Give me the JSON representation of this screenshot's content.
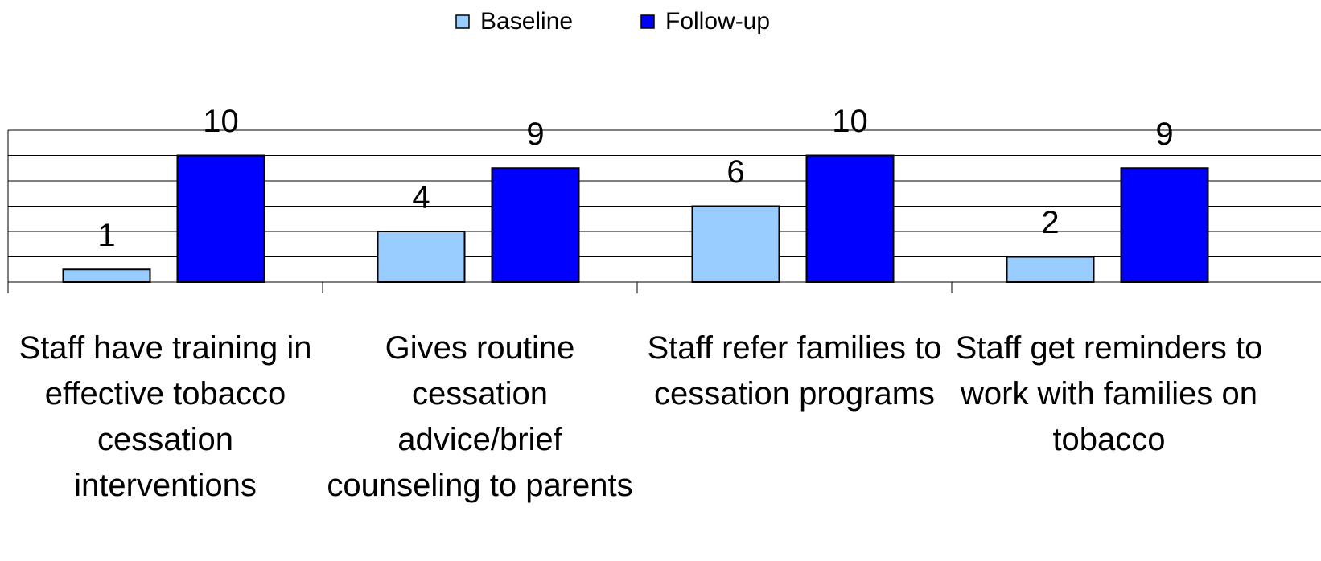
{
  "chart_data": {
    "type": "bar",
    "categories": [
      "Staff have training in effective tobacco cessation interventions",
      "Gives routine cessation advice/brief counseling to parents",
      "Staff refer families to cessation programs",
      "Staff get reminders to work with families on tobacco"
    ],
    "series": [
      {
        "name": "Baseline",
        "color": "#99ccff",
        "values": [
          1,
          4,
          6,
          2
        ]
      },
      {
        "name": "Follow-up",
        "color": "#0000ff",
        "values": [
          10,
          9,
          10,
          9
        ]
      }
    ],
    "ylim": [
      0,
      12
    ],
    "yticks": [
      0,
      2,
      4,
      6,
      8,
      10,
      12
    ],
    "grid": true,
    "legend": "top"
  }
}
